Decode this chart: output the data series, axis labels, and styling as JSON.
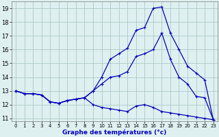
{
  "title": "Graphe des températures (°c)",
  "background_color": "#dff0f0",
  "grid_color": "#aac8c8",
  "line_color": "#0000bb",
  "ylim": [
    10.8,
    19.5
  ],
  "xlim": [
    -0.5,
    23.5
  ],
  "yticks": [
    11,
    12,
    13,
    14,
    15,
    16,
    17,
    18,
    19
  ],
  "xticks": [
    0,
    1,
    2,
    3,
    4,
    5,
    6,
    7,
    8,
    9,
    10,
    11,
    12,
    13,
    14,
    15,
    16,
    17,
    18,
    19,
    20,
    21,
    22,
    23
  ],
  "curve_top_x": [
    0,
    1,
    2,
    3,
    4,
    5,
    6,
    7,
    8,
    9,
    10,
    11,
    12,
    13,
    14,
    15,
    16,
    17,
    18,
    19,
    20,
    21,
    22,
    23
  ],
  "curve_top_y": [
    13.0,
    12.8,
    12.8,
    12.7,
    12.2,
    12.1,
    12.3,
    12.4,
    12.5,
    13.0,
    14.0,
    15.3,
    15.7,
    16.1,
    17.4,
    17.6,
    19.0,
    19.1,
    17.2,
    16.0,
    14.8,
    14.3,
    13.8,
    10.9
  ],
  "curve_mid_x": [
    0,
    1,
    2,
    3,
    4,
    5,
    6,
    7,
    8,
    9,
    10,
    11,
    12,
    13,
    14,
    15,
    16,
    17,
    18,
    19,
    20,
    21,
    22,
    23
  ],
  "curve_mid_y": [
    13.0,
    12.8,
    12.8,
    12.7,
    12.2,
    12.1,
    12.3,
    12.4,
    12.5,
    13.0,
    13.5,
    14.0,
    14.1,
    14.4,
    15.5,
    15.7,
    16.0,
    17.2,
    15.3,
    14.0,
    13.5,
    12.6,
    12.5,
    10.9
  ],
  "curve_bot_x": [
    0,
    1,
    2,
    3,
    4,
    5,
    6,
    7,
    8,
    9,
    10,
    11,
    12,
    13,
    14,
    15,
    16,
    17,
    18,
    19,
    20,
    21,
    22,
    23
  ],
  "curve_bot_y": [
    13.0,
    12.8,
    12.8,
    12.7,
    12.2,
    12.1,
    12.3,
    12.4,
    12.5,
    12.0,
    11.8,
    11.7,
    11.6,
    11.5,
    11.9,
    12.0,
    11.8,
    11.5,
    11.4,
    11.3,
    11.2,
    11.1,
    11.0,
    10.9
  ]
}
